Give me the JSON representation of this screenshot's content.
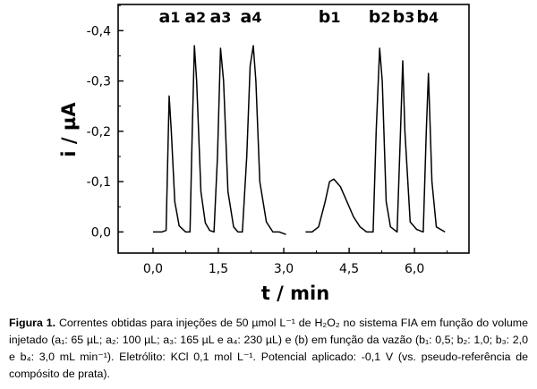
{
  "chart_data": {
    "type": "line",
    "xlabel": "t / min",
    "ylabel": "i / µA",
    "xlim": [
      -0.8,
      7.25
    ],
    "ylim": [
      0.042,
      -0.452
    ],
    "xticks": [
      0.0,
      1.5,
      3.0,
      4.5,
      6.0
    ],
    "xtick_labels": [
      "0,0",
      "1,5",
      "3,0",
      "4,5",
      "6,0"
    ],
    "yticks": [
      0.0,
      -0.1,
      -0.2,
      -0.3,
      -0.4
    ],
    "ytick_labels": [
      "0,0",
      "-0,1",
      "-0,2",
      "-0,3",
      "-0,4"
    ],
    "peak_labels": [
      {
        "main": "a",
        "sub": "1",
        "x": 0.38
      },
      {
        "main": "a",
        "sub": "2",
        "x": 0.97
      },
      {
        "main": "a",
        "sub": "3",
        "x": 1.55
      },
      {
        "main": "a",
        "sub": "4",
        "x": 2.25
      },
      {
        "main": "b",
        "sub": "1",
        "x": 4.05
      },
      {
        "main": "b",
        "sub": "2",
        "x": 5.2
      },
      {
        "main": "b",
        "sub": "3",
        "x": 5.75
      },
      {
        "main": "b",
        "sub": "4",
        "x": 6.3
      }
    ],
    "series": [
      {
        "x": [
          0.0,
          0.2,
          0.3,
          0.37,
          0.42,
          0.5,
          0.6,
          0.75,
          0.85,
          0.9,
          0.95,
          1.0,
          1.1,
          1.2,
          1.3,
          1.4,
          1.48,
          1.55,
          1.62,
          1.72,
          1.85,
          1.95,
          2.05,
          2.15,
          2.23,
          2.3,
          2.36,
          2.45,
          2.6,
          2.75,
          2.9,
          3.05
        ],
        "y": [
          0.0,
          0.0,
          -0.003,
          -0.27,
          -0.2,
          -0.06,
          -0.012,
          0.0,
          0.0,
          -0.2,
          -0.37,
          -0.3,
          -0.08,
          -0.018,
          -0.003,
          0.0,
          -0.15,
          -0.365,
          -0.3,
          -0.08,
          -0.01,
          0.0,
          0.0,
          -0.15,
          -0.33,
          -0.37,
          -0.3,
          -0.1,
          -0.02,
          0.0,
          0.0,
          0.005
        ]
      },
      {
        "x": [
          3.5,
          3.65,
          3.8,
          3.95,
          4.05,
          4.15,
          4.3,
          4.45,
          4.6,
          4.75,
          4.9,
          5.05,
          5.12,
          5.2,
          5.26,
          5.35,
          5.45,
          5.6,
          5.68,
          5.73,
          5.78,
          5.9,
          6.05,
          6.2,
          6.27,
          6.32,
          6.4,
          6.5,
          6.7
        ],
        "y": [
          0.0,
          0.0,
          -0.01,
          -0.06,
          -0.1,
          -0.105,
          -0.09,
          -0.06,
          -0.03,
          -0.01,
          0.0,
          0.0,
          -0.2,
          -0.365,
          -0.3,
          -0.06,
          -0.01,
          0.0,
          -0.2,
          -0.34,
          -0.2,
          -0.02,
          -0.005,
          0.0,
          -0.2,
          -0.315,
          -0.1,
          -0.01,
          0.0
        ]
      }
    ]
  },
  "caption": {
    "figure_label": "Figura 1.",
    "text": "Correntes obtidas para injeções de 50 µmol L⁻¹ de H₂O₂ no sistema FIA em função do volume injetado (a₁: 65 µL; a₂: 100 µL; a₃: 165 µL e a₄: 230 µL) e (b) em função da vazão (b₁: 0,5; b₂: 1,0; b₃: 2,0 e b₄: 3,0 mL min⁻¹). Eletrólito: KCl 0,1 mol L⁻¹. Potencial aplicado: -0,1 V (vs. pseudo-referência de compósito de prata)."
  }
}
